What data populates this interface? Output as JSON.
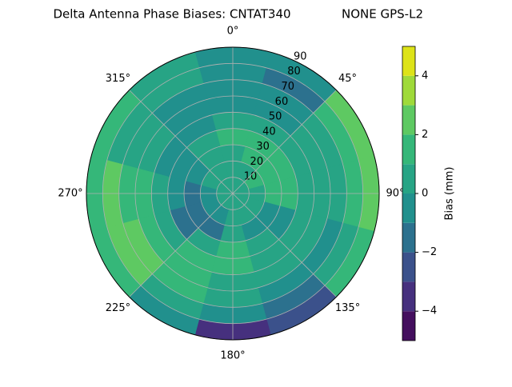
{
  "chart_data": {
    "type": "polar_contour",
    "title": "Delta Antenna Phase Biases: CNTAT340",
    "subtitle": "NONE GPS-L2",
    "azimuth": [
      0,
      30,
      60,
      90,
      120,
      150,
      180,
      210,
      240,
      270,
      300,
      330
    ],
    "zenith": [
      5,
      15,
      25,
      35,
      45,
      55,
      65,
      75,
      85
    ],
    "values": [
      [
        0.5,
        0.5,
        0.5,
        1.5,
        0.5,
        -0.5,
        -0.5,
        -0.5,
        -0.5
      ],
      [
        0.5,
        0.5,
        1.5,
        1.5,
        0.5,
        -0.5,
        -0.5,
        -1.5,
        -0.5
      ],
      [
        0.5,
        1.5,
        1.5,
        1.5,
        0.5,
        0.5,
        0.5,
        1.5,
        2.5
      ],
      [
        0.5,
        0.5,
        1.5,
        1.5,
        0.5,
        0.5,
        0.5,
        1.5,
        2.5
      ],
      [
        0.5,
        0.5,
        -0.5,
        -0.5,
        0.5,
        0.5,
        -0.5,
        0.5,
        1.5
      ],
      [
        0.5,
        0.5,
        -0.5,
        0.5,
        0.5,
        0.5,
        -0.5,
        -1.5,
        -2.5
      ],
      [
        0.5,
        0.5,
        0.5,
        1.5,
        1.5,
        0.5,
        0.5,
        -0.5,
        -3.5
      ],
      [
        0.5,
        -0.5,
        -1.5,
        0.5,
        1.5,
        1.5,
        1.5,
        0.5,
        -0.5
      ],
      [
        0.5,
        -0.5,
        -1.5,
        -1.5,
        0.5,
        1.5,
        2.5,
        2.5,
        1.5
      ],
      [
        0.5,
        -0.5,
        -1.5,
        -0.5,
        0.5,
        1.5,
        1.5,
        2.5,
        1.5
      ],
      [
        0.5,
        0.5,
        -0.5,
        -0.5,
        -0.5,
        0.5,
        0.5,
        0.5,
        1.5
      ],
      [
        0.5,
        0.5,
        0.5,
        0.5,
        -0.5,
        -0.5,
        -0.5,
        0.5,
        0.5
      ]
    ],
    "rlim": [
      0,
      90
    ],
    "rticks": [
      10,
      20,
      30,
      40,
      50,
      60,
      70,
      80,
      90
    ],
    "thetaticks": [
      {
        "value": 0,
        "label": "0°"
      },
      {
        "value": 45,
        "label": "45°"
      },
      {
        "value": 90,
        "label": "90°"
      },
      {
        "value": 135,
        "label": "135°"
      },
      {
        "value": 180,
        "label": "180°"
      },
      {
        "value": 225,
        "label": "225°"
      },
      {
        "value": 270,
        "label": "270°"
      },
      {
        "value": 315,
        "label": "315°"
      }
    ],
    "levels": [
      -5,
      -4,
      -3,
      -2,
      -1,
      0,
      1,
      2,
      3,
      4,
      5
    ],
    "colors": [
      "#440f5e",
      "#46307e",
      "#3b518b",
      "#2c718e",
      "#21908d",
      "#27a485",
      "#35b779",
      "#5ec962",
      "#9fda3a",
      "#dde318"
    ],
    "clim": [
      -5,
      5
    ],
    "cticks": [
      {
        "value": -4,
        "label": "−4"
      },
      {
        "value": -2,
        "label": "−2"
      },
      0,
      2,
      4
    ],
    "colorbar_label": "Bias (mm)",
    "grid": true
  }
}
